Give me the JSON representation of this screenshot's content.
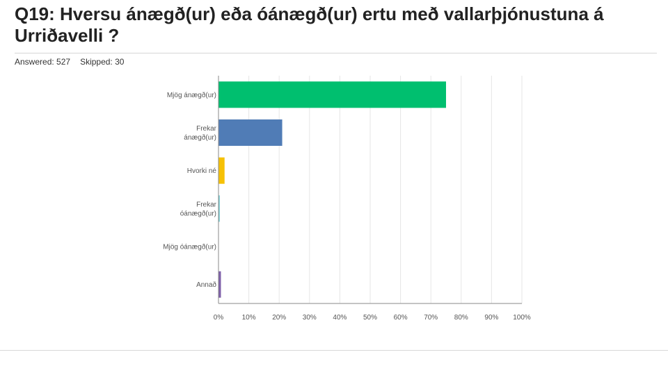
{
  "page": {
    "title": "Q19: Hversu ánægð(ur) eða óánægð(ur) ertu með vallarþjónustuna á Urriðavelli ?",
    "answered_label": "Answered: 527",
    "skipped_label": "Skipped: 30"
  },
  "chart_data": {
    "type": "bar",
    "orientation": "horizontal",
    "categories": [
      [
        "Mjög ánægð(ur)"
      ],
      [
        "Frekar",
        "ánægð(ur)"
      ],
      [
        "Hvorki né"
      ],
      [
        "Frekar",
        "óánægð(ur)"
      ],
      [
        "Mjög óánægð(ur)"
      ],
      [
        "Annað"
      ]
    ],
    "values": [
      75,
      21,
      2,
      0.4,
      0,
      0.8
    ],
    "colors": [
      "#00bf6f",
      "#507cb6",
      "#f6c106",
      "#6bc8cd",
      "#304390",
      "#7d5fa8"
    ],
    "xlim": [
      0,
      100
    ],
    "xticks": [
      "0%",
      "10%",
      "20%",
      "30%",
      "40%",
      "50%",
      "60%",
      "70%",
      "80%",
      "90%",
      "100%"
    ],
    "grid": true,
    "title": "",
    "xlabel": "",
    "ylabel": ""
  }
}
